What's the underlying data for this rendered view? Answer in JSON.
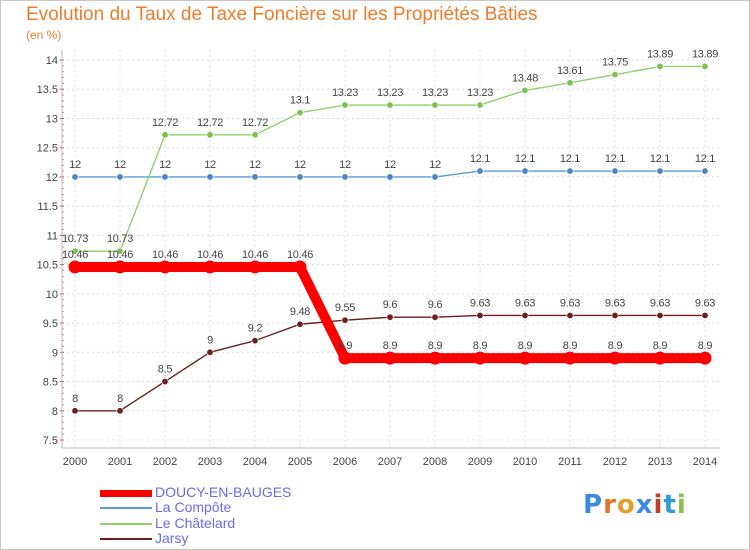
{
  "title": "Evolution du Taux de Taxe Foncière sur les Propriétés Bâties",
  "subtitle": "(en %)",
  "logo": {
    "letters": [
      "P",
      "r",
      "o",
      "x",
      "i",
      "t",
      "i"
    ],
    "colors": [
      "#3a8be0",
      "#e2742e",
      "#e2a12e",
      "#3a8be0",
      "#c23c2e",
      "#2e9bd8",
      "#8bc34a"
    ]
  },
  "chart_data": {
    "type": "line",
    "title": "Evolution du Taux de Taxe Foncière sur les Propriétés Bâties",
    "ylabel": "(en %)",
    "ylim": [
      7.5,
      14
    ],
    "yticks": [
      "7.5",
      "8",
      "8.5",
      "9",
      "9.5",
      "10",
      "10.5",
      "11",
      "11.5",
      "12",
      "12.5",
      "13",
      "13.5",
      "14"
    ],
    "categories": [
      "2000",
      "2001",
      "2002",
      "2003",
      "2004",
      "2005",
      "2006",
      "2007",
      "2008",
      "2009",
      "2010",
      "2011",
      "2012",
      "2013",
      "2014"
    ],
    "series": [
      {
        "name": "La Compôte",
        "color": "#5b9bd5",
        "marker": "#4a86c5",
        "thick": false,
        "values": [
          12,
          12,
          12,
          12,
          12,
          12,
          12,
          12,
          12,
          12.1,
          12.1,
          12.1,
          12.1,
          12.1,
          12.1
        ],
        "labels": [
          "12",
          "12",
          "12",
          "12",
          "12",
          "12",
          "12",
          "12",
          "12",
          "12.1",
          "12.1",
          "12.1",
          "12.1",
          "12.1",
          "12.1"
        ]
      },
      {
        "name": "Le Châtelard",
        "color": "#8fd16a",
        "marker": "#7cc252",
        "thick": false,
        "values": [
          10.73,
          10.73,
          12.72,
          12.72,
          12.72,
          13.1,
          13.23,
          13.23,
          13.23,
          13.23,
          13.48,
          13.61,
          13.75,
          13.89,
          13.89
        ],
        "labels": [
          "10.73",
          "10.73",
          "12.72",
          "12.72",
          "12.72",
          "13.1",
          "13.23",
          "13.23",
          "13.23",
          "13.23",
          "13.48",
          "13.61",
          "13.75",
          "13.89",
          "13.89"
        ]
      },
      {
        "name": "Jarsy",
        "color": "#6b1f1f",
        "marker": "#6b1f1f",
        "thick": false,
        "values": [
          8,
          8,
          8.5,
          9,
          9.2,
          9.48,
          9.55,
          9.6,
          9.6,
          9.63,
          9.63,
          9.63,
          9.63,
          9.63,
          9.63
        ],
        "labels": [
          "8",
          "8",
          "8.5",
          "9",
          "9.2",
          "9.48",
          "9.55",
          "9.6",
          "9.6",
          "9.63",
          "9.63",
          "9.63",
          "9.63",
          "9.63",
          "9.63"
        ]
      },
      {
        "name": "DOUCY-EN-BAUGES",
        "color": "#ff0000",
        "marker": "#ff0000",
        "thick": true,
        "values": [
          10.46,
          10.46,
          10.46,
          10.46,
          10.46,
          10.46,
          8.9,
          8.9,
          8.9,
          8.9,
          8.9,
          8.9,
          8.9,
          8.9,
          8.9
        ],
        "labels": [
          "10.46",
          "10.46",
          "10.46",
          "10.46",
          "10.46",
          "10.46",
          "8.9",
          "8.9",
          "8.9",
          "8.9",
          "8.9",
          "8.9",
          "8.9",
          "8.9",
          "8.9"
        ]
      }
    ],
    "legend": [
      "DOUCY-EN-BAUGES",
      "La Compôte",
      "Le Châtelard",
      "Jarsy"
    ],
    "legend_position": "bottom-left"
  }
}
